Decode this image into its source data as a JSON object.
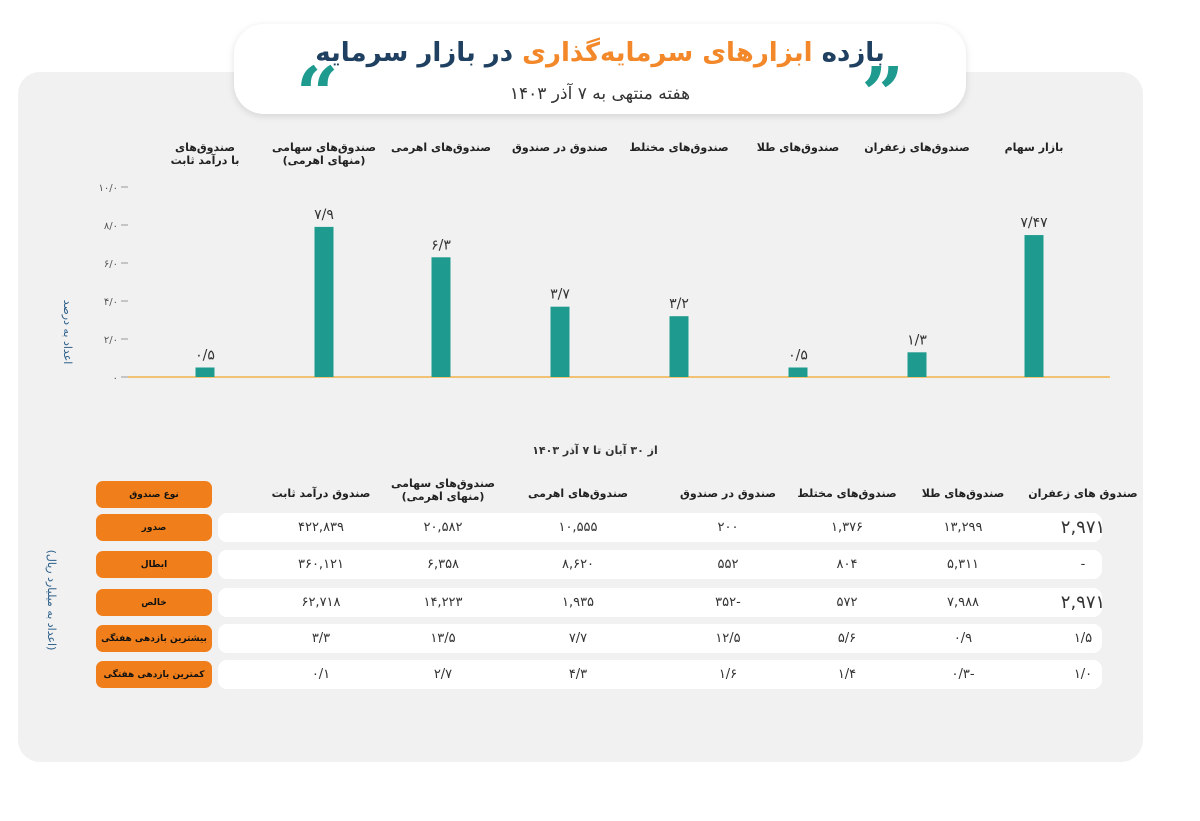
{
  "header": {
    "title_part1": "بازده",
    "title_part2": "ابزارهای سرمایه‌گذاری",
    "title_part3": "در بازار سرمایه",
    "subtitle": "هفته منتهی به ۷ آذر ۱۴۰۳",
    "accent_color": "#f2882a",
    "dark_color": "#1f4060",
    "teal_color": "#1f9a8e"
  },
  "chart_data": {
    "type": "bar",
    "categories": [
      "صندوق‌های با درآمد ثابت",
      "صندوق‌های سهامی (منهای اهرمی)",
      "صندوق‌های اهرمی",
      "صندوق در صندوق",
      "صندوق‌های مختلط",
      "صندوق‌های طلا",
      "صندوق‌های زعفران",
      "بازار سهام"
    ],
    "category_lines": [
      [
        "صندوق‌های",
        "با درآمد ثابت"
      ],
      [
        "صندوق‌های سهامی",
        "(منهای اهرمی)"
      ],
      [
        "صندوق‌های اهرمی"
      ],
      [
        "صندوق در صندوق"
      ],
      [
        "صندوق‌های مختلط"
      ],
      [
        "صندوق‌های طلا"
      ],
      [
        "صندوق‌های زعفران"
      ],
      [
        "بازار سهام"
      ]
    ],
    "values": [
      0.5,
      7.9,
      6.3,
      3.7,
      3.2,
      0.5,
      1.3,
      7.47
    ],
    "value_labels": [
      "۰/۵",
      "۷/۹",
      "۶/۳",
      "۳/۷",
      "۳/۲",
      "۰/۵",
      "۱/۳",
      "۷/۴۷"
    ],
    "ylabel": "اعداد به درصد",
    "ylim": [
      0,
      10
    ],
    "yticks": [
      0,
      2,
      4,
      6,
      8,
      10
    ],
    "ytick_labels": [
      "۰",
      "۲/۰",
      "۴/۰",
      "۶/۰",
      "۸/۰",
      "۱۰/۰"
    ],
    "bar_color": "#1f9a8e",
    "baseline_color": "#f2b24a",
    "grid": false,
    "period": "از ۳۰ آبان تا ۷ آذر ۱۴۰۳"
  },
  "table": {
    "ylabel": "(اعداد به میلیارد ریال)",
    "header_label": "نوع صندوق",
    "columns": [
      "صندوق درآمد ثابت",
      "صندوق‌های سهامی (منهای اهرمی)",
      "صندوق‌های اهرمی",
      "صندوق در صندوق",
      "صندوق‌های مختلط",
      "صندوق‌های طلا",
      "صندوق های  زعفران"
    ],
    "rows": [
      {
        "label": "صدور",
        "cells": [
          "۴۲۲,۸۳۹",
          "۲۰,۵۸۲",
          "۱۰,۵۵۵",
          "۲۰۰",
          "۱,۳۷۶",
          "۱۳,۲۹۹",
          "۲,۹۷۱"
        ]
      },
      {
        "label": "ابطال",
        "cells": [
          "۳۶۰,۱۲۱",
          "۶,۳۵۸",
          "۸,۶۲۰",
          "۵۵۲",
          "۸۰۴",
          "۵,۳۱۱",
          "-"
        ]
      },
      {
        "label": "خالص",
        "cells": [
          "۶۲,۷۱۸",
          "۱۴,۲۲۳",
          "۱,۹۳۵",
          "-۳۵۲",
          "۵۷۲",
          "۷,۹۸۸",
          "۲,۹۷۱"
        ]
      },
      {
        "label": "بیشترین  بازدهی هفتگی",
        "cells": [
          "۳/۳",
          "۱۳/۵",
          "۷/۷",
          "۱۲/۵",
          "۵/۶",
          "۰/۹",
          "۱/۵"
        ]
      },
      {
        "label": "کمترین  بازدهی هفتگی",
        "cells": [
          "۰/۱",
          "۲/۷",
          "۴/۳",
          "۱/۶",
          "۱/۴",
          "-۰/۳",
          "۱/۰"
        ]
      }
    ]
  }
}
